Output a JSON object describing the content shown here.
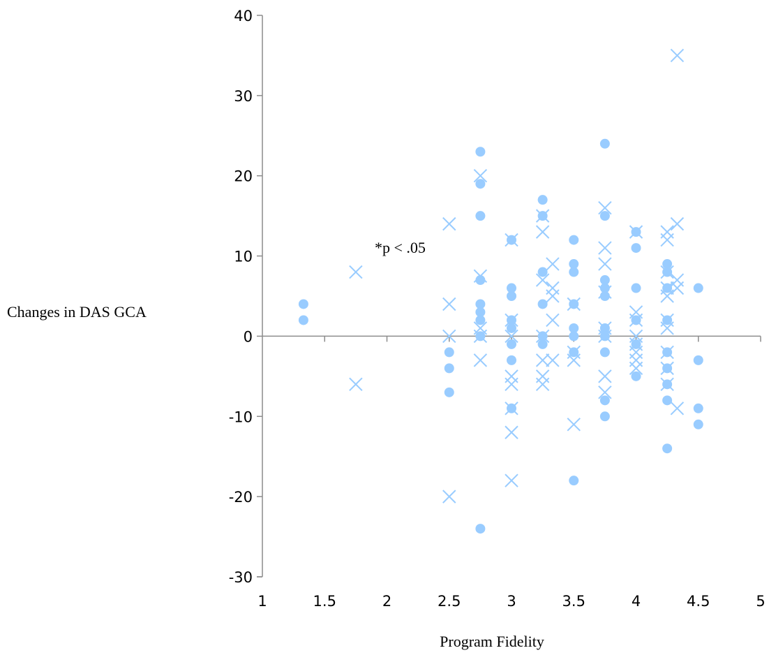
{
  "chart_data": {
    "type": "scatter",
    "title": "",
    "xlabel": "Program Fidelity",
    "ylabel": "Changes in DAS GCA",
    "annotation": "*p < .05",
    "xlim": [
      1,
      5
    ],
    "ylim": [
      -30,
      40
    ],
    "xticks": [
      "1",
      "1.5",
      "2",
      "2.5",
      "3",
      "3.5",
      "4",
      "4.5",
      "5"
    ],
    "yticks": [
      "40",
      "30",
      "20",
      "10",
      "0",
      "-10",
      "-20",
      "-30"
    ],
    "grid": false,
    "legend": "none",
    "marker_color": "#99ccff",
    "series": [
      {
        "marker": "circle",
        "points": [
          [
            1.33,
            4
          ],
          [
            1.33,
            2
          ],
          [
            2.5,
            -2
          ],
          [
            2.5,
            -4
          ],
          [
            2.5,
            -7
          ],
          [
            2.75,
            23
          ],
          [
            2.75,
            19
          ],
          [
            2.75,
            15
          ],
          [
            2.75,
            7
          ],
          [
            2.75,
            4
          ],
          [
            2.75,
            3
          ],
          [
            2.75,
            2
          ],
          [
            2.75,
            0
          ],
          [
            2.75,
            -24
          ],
          [
            3.0,
            12
          ],
          [
            3.0,
            6
          ],
          [
            3.0,
            5
          ],
          [
            3.0,
            2
          ],
          [
            3.0,
            1
          ],
          [
            3.0,
            -1
          ],
          [
            3.0,
            -3
          ],
          [
            3.0,
            -9
          ],
          [
            3.25,
            17
          ],
          [
            3.25,
            15
          ],
          [
            3.25,
            8
          ],
          [
            3.25,
            4
          ],
          [
            3.25,
            0
          ],
          [
            3.25,
            -1
          ],
          [
            3.5,
            12
          ],
          [
            3.5,
            9
          ],
          [
            3.5,
            8
          ],
          [
            3.5,
            4
          ],
          [
            3.5,
            1
          ],
          [
            3.5,
            0
          ],
          [
            3.5,
            -2
          ],
          [
            3.5,
            -18
          ],
          [
            3.75,
            24
          ],
          [
            3.75,
            15
          ],
          [
            3.75,
            7
          ],
          [
            3.75,
            6
          ],
          [
            3.75,
            5
          ],
          [
            3.75,
            1
          ],
          [
            3.75,
            0
          ],
          [
            3.75,
            -2
          ],
          [
            3.75,
            -8
          ],
          [
            3.75,
            -10
          ],
          [
            4.0,
            13
          ],
          [
            4.0,
            11
          ],
          [
            4.0,
            6
          ],
          [
            4.0,
            2
          ],
          [
            4.0,
            -1
          ],
          [
            4.0,
            -5
          ],
          [
            4.25,
            9
          ],
          [
            4.25,
            8
          ],
          [
            4.25,
            6
          ],
          [
            4.25,
            2
          ],
          [
            4.25,
            -2
          ],
          [
            4.25,
            -4
          ],
          [
            4.25,
            -6
          ],
          [
            4.25,
            -8
          ],
          [
            4.25,
            -14
          ],
          [
            4.5,
            6
          ],
          [
            4.5,
            -3
          ],
          [
            4.5,
            -9
          ],
          [
            4.5,
            -11
          ]
        ]
      },
      {
        "marker": "x",
        "points": [
          [
            1.75,
            8
          ],
          [
            1.75,
            -6
          ],
          [
            2.5,
            14
          ],
          [
            2.5,
            4
          ],
          [
            2.5,
            0
          ],
          [
            2.5,
            -20
          ],
          [
            2.75,
            20
          ],
          [
            2.75,
            7.5
          ],
          [
            2.75,
            1
          ],
          [
            2.75,
            0
          ],
          [
            2.75,
            -3
          ],
          [
            3.0,
            12
          ],
          [
            3.0,
            2
          ],
          [
            3.0,
            0
          ],
          [
            3.0,
            -5
          ],
          [
            3.0,
            -6
          ],
          [
            3.0,
            -9
          ],
          [
            3.0,
            -12
          ],
          [
            3.0,
            -18
          ],
          [
            3.25,
            15
          ],
          [
            3.25,
            13
          ],
          [
            3.25,
            7
          ],
          [
            3.25,
            0
          ],
          [
            3.25,
            -3
          ],
          [
            3.25,
            -5
          ],
          [
            3.25,
            -6
          ],
          [
            3.33,
            9
          ],
          [
            3.33,
            6
          ],
          [
            3.33,
            5
          ],
          [
            3.33,
            2
          ],
          [
            3.33,
            -3
          ],
          [
            3.5,
            4
          ],
          [
            3.5,
            -2
          ],
          [
            3.5,
            -3
          ],
          [
            3.5,
            -11
          ],
          [
            3.75,
            16
          ],
          [
            3.75,
            11
          ],
          [
            3.75,
            9
          ],
          [
            3.75,
            5.5
          ],
          [
            3.75,
            1
          ],
          [
            3.75,
            0
          ],
          [
            3.75,
            -5
          ],
          [
            3.75,
            -7
          ],
          [
            4.0,
            13
          ],
          [
            4.0,
            3
          ],
          [
            4.0,
            2
          ],
          [
            4.0,
            0
          ],
          [
            4.0,
            -1
          ],
          [
            4.0,
            -2
          ],
          [
            4.0,
            -3
          ],
          [
            4.0,
            -4
          ],
          [
            4.25,
            13
          ],
          [
            4.25,
            12
          ],
          [
            4.25,
            8
          ],
          [
            4.25,
            6
          ],
          [
            4.25,
            5
          ],
          [
            4.25,
            2
          ],
          [
            4.25,
            1
          ],
          [
            4.25,
            -2
          ],
          [
            4.25,
            -4
          ],
          [
            4.25,
            -6
          ],
          [
            4.33,
            35
          ],
          [
            4.33,
            14
          ],
          [
            4.33,
            7
          ],
          [
            4.33,
            6
          ],
          [
            4.33,
            -9
          ]
        ]
      }
    ]
  }
}
